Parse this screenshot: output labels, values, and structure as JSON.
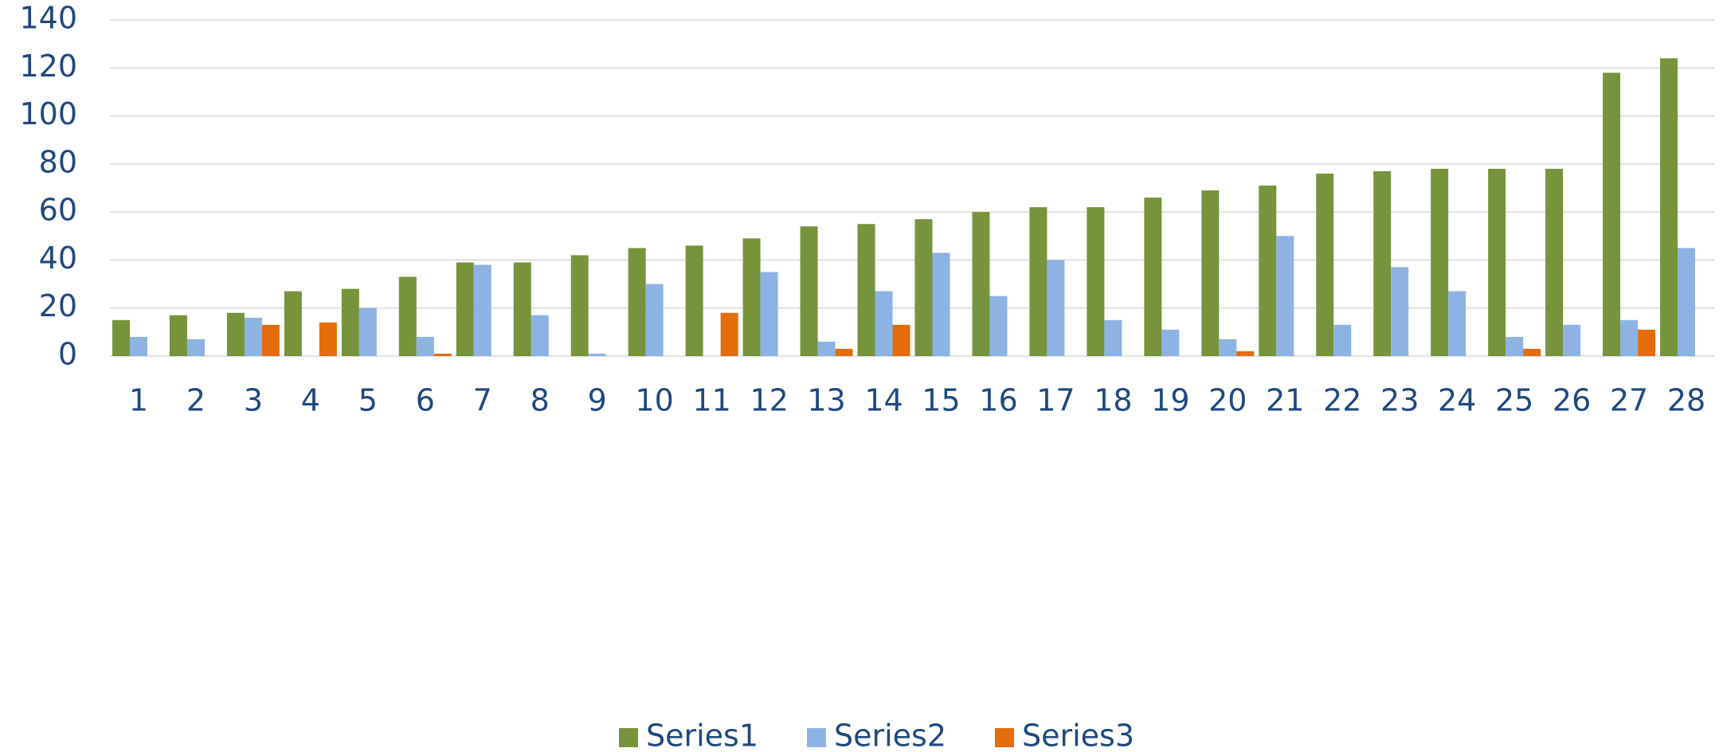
{
  "chart_data": {
    "type": "bar",
    "categories": [
      "1",
      "2",
      "3",
      "4",
      "5",
      "6",
      "7",
      "8",
      "9",
      "10",
      "11",
      "12",
      "13",
      "14",
      "15",
      "16",
      "17",
      "18",
      "19",
      "20",
      "21",
      "22",
      "23",
      "24",
      "25",
      "26",
      "27",
      "28"
    ],
    "series": [
      {
        "name": "Series1",
        "color": "#77933c",
        "values": [
          15,
          17,
          18,
          27,
          28,
          33,
          39,
          39,
          42,
          45,
          46,
          49,
          54,
          55,
          57,
          60,
          62,
          62,
          66,
          69,
          71,
          76,
          77,
          78,
          78,
          78,
          118,
          124
        ]
      },
      {
        "name": "Series2",
        "color": "#8db3e2",
        "values": [
          8,
          7,
          16,
          0,
          20,
          8,
          38,
          17,
          1,
          30,
          0,
          35,
          6,
          27,
          43,
          25,
          40,
          15,
          11,
          7,
          50,
          13,
          37,
          27,
          8,
          13,
          15,
          45
        ]
      },
      {
        "name": "Series3",
        "color": "#e46c0a",
        "values": [
          0,
          0,
          13,
          14,
          0,
          1,
          0,
          0,
          0,
          0,
          18,
          0,
          3,
          13,
          0,
          0,
          0,
          0,
          0,
          2,
          0,
          0,
          0,
          0,
          3,
          0,
          11,
          0
        ]
      }
    ],
    "ylim": [
      0,
      140
    ],
    "yticks": [
      0,
      20,
      40,
      60,
      80,
      100,
      120,
      140
    ],
    "grid": true,
    "legend": "bottom"
  }
}
